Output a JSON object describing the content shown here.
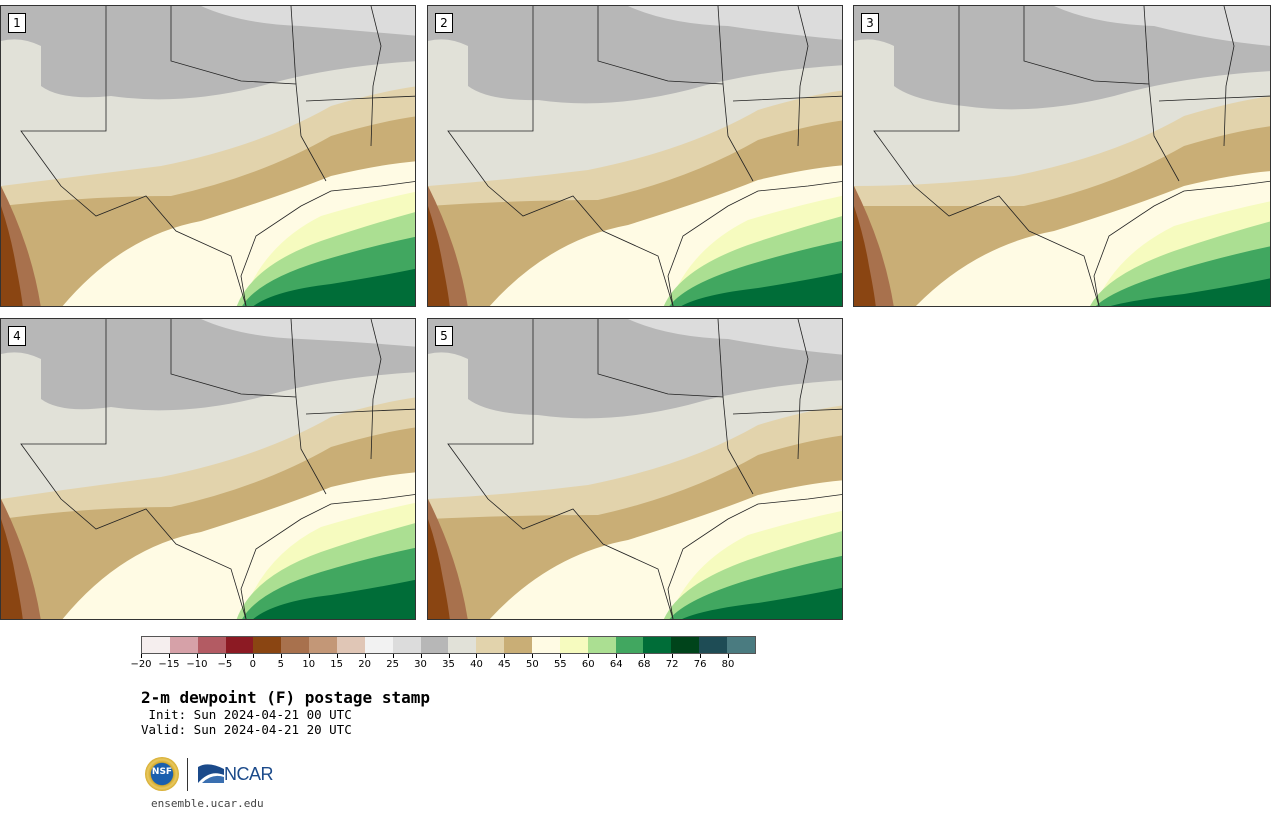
{
  "panels": [
    {
      "label": "1"
    },
    {
      "label": "2"
    },
    {
      "label": "3"
    },
    {
      "label": "4"
    },
    {
      "label": "5"
    }
  ],
  "colorbar": {
    "colors": [
      "#f5eeee",
      "#d6a1a8",
      "#b35b63",
      "#8c1a23",
      "#8a4512",
      "#a8714d",
      "#c39777",
      "#e0c6b6",
      "#f2f2f2",
      "#dcdcdc",
      "#b7b7b7",
      "#e1e1d8",
      "#e2d3ac",
      "#c9ae76",
      "#fffbe4",
      "#f6fbbf",
      "#abdf92",
      "#41a760",
      "#006d38",
      "#00441b",
      "#1e4c55",
      "#4a7b80"
    ],
    "tick_labels": [
      "−20",
      "−15",
      "−10",
      "−5",
      "0",
      "5",
      "10",
      "15",
      "20",
      "25",
      "30",
      "35",
      "40",
      "45",
      "50",
      "55",
      "60",
      "64",
      "68",
      "72",
      "76",
      "80"
    ]
  },
  "title": "2-m dewpoint (F) postage stamp",
  "init": " Init: Sun 2024-04-21 00 UTC",
  "valid": "Valid: Sun 2024-04-21 20 UTC",
  "logos": {
    "nsf": "NSF",
    "ncar": "NCAR"
  },
  "website": "ensemble.ucar.edu"
}
